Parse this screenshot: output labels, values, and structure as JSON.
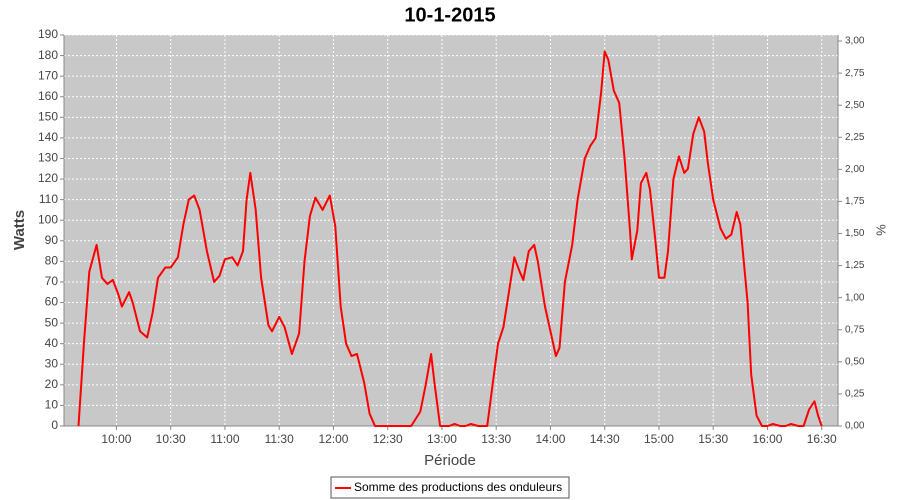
{
  "chart_data": {
    "type": "line",
    "title": "10-1-2015",
    "xlabel": "Période",
    "ylabel": "Watts",
    "y2label": "%",
    "x": [
      579,
      582,
      585,
      589,
      592,
      595,
      598,
      601,
      603,
      607,
      609,
      613,
      617,
      620,
      623,
      627,
      630,
      634,
      637,
      640,
      643,
      646,
      650,
      654,
      657,
      660,
      664,
      667,
      670,
      672,
      674,
      677,
      680,
      684,
      686,
      690,
      693,
      697,
      701,
      704,
      707,
      710,
      714,
      718,
      721,
      724,
      727,
      730,
      733,
      737,
      740,
      743,
      749,
      755,
      763,
      768,
      771,
      774,
      776,
      779,
      784,
      787,
      790,
      793,
      796,
      800,
      805,
      808,
      811,
      814,
      817,
      820,
      823,
      825,
      828,
      831,
      833,
      837,
      841,
      843,
      845,
      848,
      852,
      855,
      859,
      862,
      865,
      868,
      870,
      872,
      875,
      878,
      881,
      884,
      885,
      888,
      890,
      893,
      895,
      898,
      900,
      903,
      905,
      908,
      911,
      914,
      916,
      919,
      922,
      925,
      927,
      930,
      934,
      937,
      940,
      943,
      945,
      949,
      951,
      954,
      957,
      960,
      963,
      967,
      970,
      973,
      977,
      980,
      983,
      986,
      988,
      990
    ],
    "series": [
      {
        "name": "Somme des productions des onduleurs",
        "color": "#ff0000",
        "values": [
          0,
          40,
          75,
          88,
          72,
          69,
          71,
          64,
          58,
          65,
          60,
          46,
          43,
          55,
          72,
          77,
          77,
          82,
          98,
          110,
          112,
          105,
          85,
          70,
          73,
          81,
          82,
          78,
          85,
          110,
          123,
          105,
          72,
          49,
          46,
          53,
          48,
          35,
          45,
          80,
          102,
          111,
          105,
          112,
          97,
          58,
          40,
          34,
          35,
          21,
          6,
          0,
          0,
          0,
          0,
          7,
          20,
          35,
          20,
          0,
          0,
          1,
          0,
          0,
          1,
          0,
          0,
          20,
          40,
          48,
          65,
          82,
          75,
          71,
          85,
          88,
          80,
          58,
          42,
          34,
          38,
          70,
          88,
          110,
          130,
          136,
          140,
          162,
          182,
          178,
          163,
          157,
          130,
          95,
          81,
          95,
          118,
          123,
          115,
          90,
          72,
          72,
          85,
          120,
          131,
          123,
          125,
          142,
          150,
          143,
          128,
          110,
          96,
          91,
          93,
          104,
          98,
          60,
          25,
          5,
          0,
          0,
          1,
          0,
          0,
          1,
          0,
          0,
          8,
          12,
          5,
          0
        ]
      }
    ],
    "xlim": [
      571,
      999
    ],
    "xticks": [
      {
        "value": 600,
        "label": "10:00"
      },
      {
        "value": 630,
        "label": "10:30"
      },
      {
        "value": 660,
        "label": "11:00"
      },
      {
        "value": 690,
        "label": "11:30"
      },
      {
        "value": 720,
        "label": "12:00"
      },
      {
        "value": 750,
        "label": "12:30"
      },
      {
        "value": 780,
        "label": "13:00"
      },
      {
        "value": 810,
        "label": "13:30"
      },
      {
        "value": 840,
        "label": "14:00"
      },
      {
        "value": 870,
        "label": "14:30"
      },
      {
        "value": 900,
        "label": "15:00"
      },
      {
        "value": 930,
        "label": "15:30"
      },
      {
        "value": 960,
        "label": "16:00"
      },
      {
        "value": 990,
        "label": "16:30"
      }
    ],
    "ylim": [
      0,
      190
    ],
    "yticks": [
      0,
      10,
      20,
      30,
      40,
      50,
      60,
      70,
      80,
      90,
      100,
      110,
      120,
      130,
      140,
      150,
      160,
      170,
      180,
      190
    ],
    "y2lim": [
      0,
      3.047
    ],
    "y2ticks": [
      {
        "value": 0,
        "label": "0,00"
      },
      {
        "value": 0.25,
        "label": "0,25"
      },
      {
        "value": 0.5,
        "label": "0,50"
      },
      {
        "value": 0.75,
        "label": "0,75"
      },
      {
        "value": 1,
        "label": "1,00"
      },
      {
        "value": 1.25,
        "label": "1,25"
      },
      {
        "value": 1.5,
        "label": "1,50"
      },
      {
        "value": 1.75,
        "label": "1,75"
      },
      {
        "value": 2,
        "label": "2,00"
      },
      {
        "value": 2.25,
        "label": "2,25"
      },
      {
        "value": 2.5,
        "label": "2,50"
      },
      {
        "value": 2.75,
        "label": "2,75"
      },
      {
        "value": 3,
        "label": "3,00"
      }
    ],
    "grid": true,
    "legend": "bottom"
  }
}
